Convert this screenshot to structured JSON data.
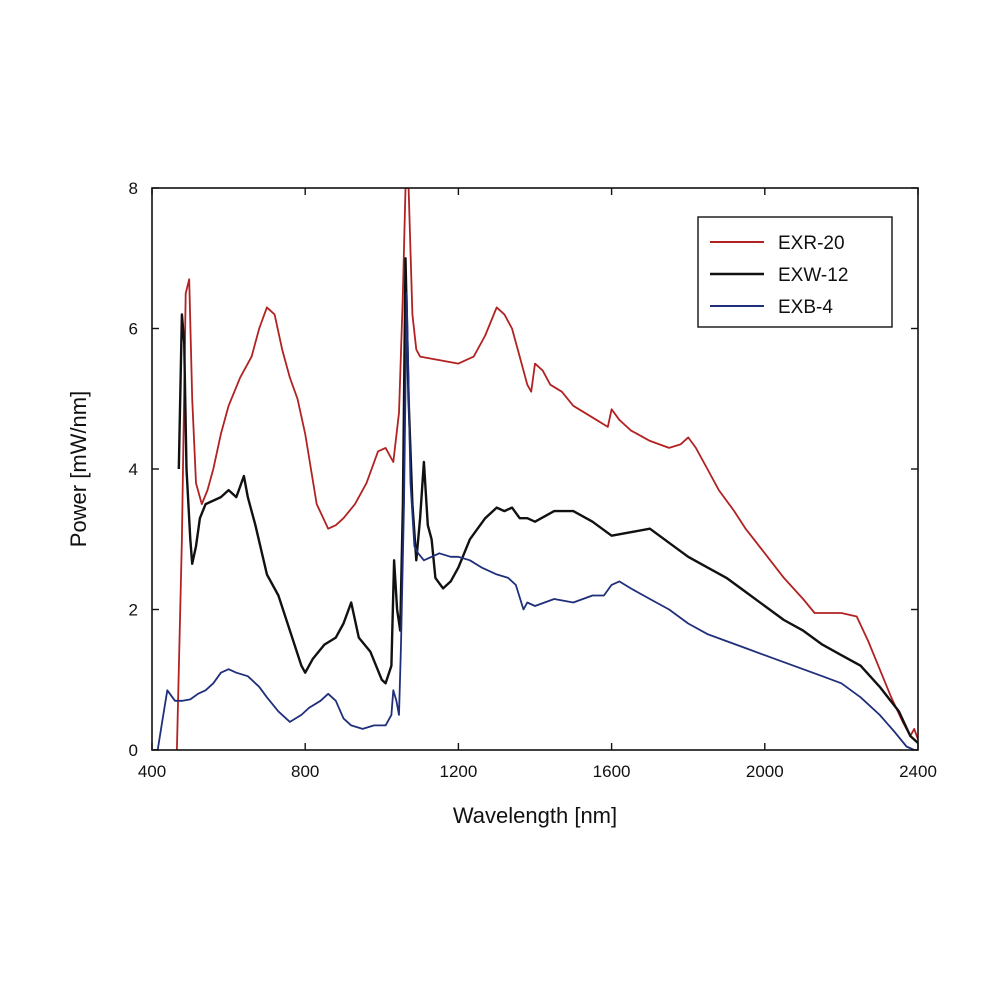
{
  "chart_data": {
    "type": "line",
    "title": "",
    "xlabel": "Wavelength [nm]",
    "ylabel": "Power [mW/nm]",
    "xlim": [
      400,
      2400
    ],
    "ylim": [
      0,
      8
    ],
    "x_ticks": [
      400,
      800,
      1200,
      1600,
      2000,
      2400
    ],
    "y_ticks": [
      0,
      2,
      4,
      6,
      8
    ],
    "grid": false,
    "legend_position": "top-right",
    "series": [
      {
        "name": "EXR-20",
        "color": "#b22222",
        "x": [
          465,
          478,
          488,
          497,
          505,
          515,
          530,
          545,
          560,
          580,
          600,
          630,
          660,
          680,
          700,
          720,
          740,
          760,
          780,
          800,
          830,
          860,
          880,
          900,
          930,
          960,
          990,
          1010,
          1030,
          1045,
          1055,
          1062,
          1070,
          1080,
          1090,
          1100,
          1150,
          1200,
          1240,
          1270,
          1300,
          1320,
          1340,
          1355,
          1370,
          1380,
          1390,
          1400,
          1420,
          1440,
          1470,
          1500,
          1530,
          1560,
          1590,
          1600,
          1620,
          1650,
          1700,
          1750,
          1780,
          1800,
          1820,
          1850,
          1880,
          1920,
          1950,
          2000,
          2050,
          2100,
          2130,
          2150,
          2200,
          2240,
          2270,
          2300,
          2330,
          2360,
          2380,
          2390,
          2400
        ],
        "y": [
          0.0,
          3.0,
          6.5,
          6.7,
          5.0,
          3.8,
          3.5,
          3.7,
          4.0,
          4.5,
          4.9,
          5.3,
          5.6,
          6.0,
          6.3,
          6.2,
          5.7,
          5.3,
          5.0,
          4.5,
          3.5,
          3.15,
          3.2,
          3.3,
          3.5,
          3.8,
          4.25,
          4.3,
          4.1,
          4.8,
          6.5,
          8.0,
          8.0,
          6.2,
          5.7,
          5.6,
          5.55,
          5.5,
          5.6,
          5.9,
          6.3,
          6.2,
          6.0,
          5.7,
          5.4,
          5.2,
          5.1,
          5.5,
          5.4,
          5.2,
          5.1,
          4.9,
          4.8,
          4.7,
          4.6,
          4.85,
          4.7,
          4.55,
          4.4,
          4.3,
          4.35,
          4.45,
          4.3,
          4.0,
          3.7,
          3.4,
          3.15,
          2.8,
          2.45,
          2.15,
          1.95,
          1.95,
          1.95,
          1.9,
          1.55,
          1.15,
          0.75,
          0.4,
          0.2,
          0.3,
          0.15
        ]
      },
      {
        "name": "EXW-12",
        "color": "#111111",
        "x": [
          470,
          478,
          484,
          490,
          500,
          505,
          515,
          525,
          540,
          560,
          580,
          600,
          620,
          630,
          640,
          650,
          670,
          700,
          730,
          760,
          790,
          800,
          820,
          850,
          880,
          900,
          920,
          940,
          970,
          1000,
          1010,
          1025,
          1032,
          1040,
          1048,
          1055,
          1062,
          1070,
          1080,
          1090,
          1100,
          1110,
          1120,
          1130,
          1140,
          1160,
          1180,
          1200,
          1230,
          1270,
          1300,
          1320,
          1340,
          1360,
          1380,
          1400,
          1450,
          1500,
          1550,
          1600,
          1650,
          1700,
          1750,
          1800,
          1850,
          1900,
          1950,
          2000,
          2050,
          2100,
          2150,
          2200,
          2250,
          2300,
          2350,
          2380,
          2400
        ],
        "y": [
          4.0,
          6.2,
          5.8,
          4.0,
          3.0,
          2.65,
          2.9,
          3.3,
          3.5,
          3.55,
          3.6,
          3.7,
          3.6,
          3.75,
          3.9,
          3.6,
          3.2,
          2.5,
          2.2,
          1.7,
          1.2,
          1.1,
          1.3,
          1.5,
          1.6,
          1.8,
          2.1,
          1.6,
          1.4,
          1.0,
          0.95,
          1.2,
          2.7,
          2.0,
          1.7,
          3.5,
          7.0,
          5.0,
          3.5,
          2.7,
          3.3,
          4.1,
          3.2,
          3.0,
          2.45,
          2.3,
          2.4,
          2.6,
          3.0,
          3.3,
          3.45,
          3.4,
          3.45,
          3.3,
          3.3,
          3.25,
          3.4,
          3.4,
          3.25,
          3.05,
          3.1,
          3.15,
          2.95,
          2.75,
          2.6,
          2.45,
          2.25,
          2.05,
          1.85,
          1.7,
          1.5,
          1.35,
          1.2,
          0.9,
          0.55,
          0.2,
          0.1
        ]
      },
      {
        "name": "EXB-4",
        "color": "#1f2f7a",
        "x": [
          405,
          415,
          425,
          440,
          460,
          480,
          500,
          520,
          540,
          560,
          580,
          600,
          620,
          650,
          680,
          700,
          730,
          760,
          790,
          810,
          840,
          860,
          880,
          900,
          920,
          950,
          980,
          1010,
          1025,
          1030,
          1038,
          1045,
          1050,
          1058,
          1065,
          1075,
          1085,
          1095,
          1110,
          1130,
          1150,
          1180,
          1200,
          1230,
          1260,
          1300,
          1330,
          1350,
          1370,
          1380,
          1400,
          1450,
          1500,
          1550,
          1580,
          1600,
          1620,
          1650,
          1700,
          1750,
          1800,
          1850,
          1900,
          1950,
          2000,
          2050,
          2100,
          2150,
          2200,
          2250,
          2300,
          2340,
          2370,
          2390,
          2400
        ],
        "y": [
          0.0,
          0.0,
          0.35,
          0.85,
          0.7,
          0.7,
          0.72,
          0.8,
          0.85,
          0.95,
          1.1,
          1.15,
          1.1,
          1.05,
          0.9,
          0.75,
          0.55,
          0.4,
          0.5,
          0.6,
          0.7,
          0.8,
          0.7,
          0.45,
          0.35,
          0.3,
          0.35,
          0.35,
          0.5,
          0.85,
          0.7,
          0.5,
          1.5,
          3.5,
          6.5,
          3.8,
          2.9,
          2.8,
          2.7,
          2.75,
          2.8,
          2.75,
          2.75,
          2.7,
          2.6,
          2.5,
          2.45,
          2.35,
          2.0,
          2.1,
          2.05,
          2.15,
          2.1,
          2.2,
          2.2,
          2.35,
          2.4,
          2.3,
          2.15,
          2.0,
          1.8,
          1.65,
          1.55,
          1.45,
          1.35,
          1.25,
          1.15,
          1.05,
          0.95,
          0.75,
          0.5,
          0.25,
          0.05,
          0.0,
          0.0
        ]
      }
    ]
  }
}
